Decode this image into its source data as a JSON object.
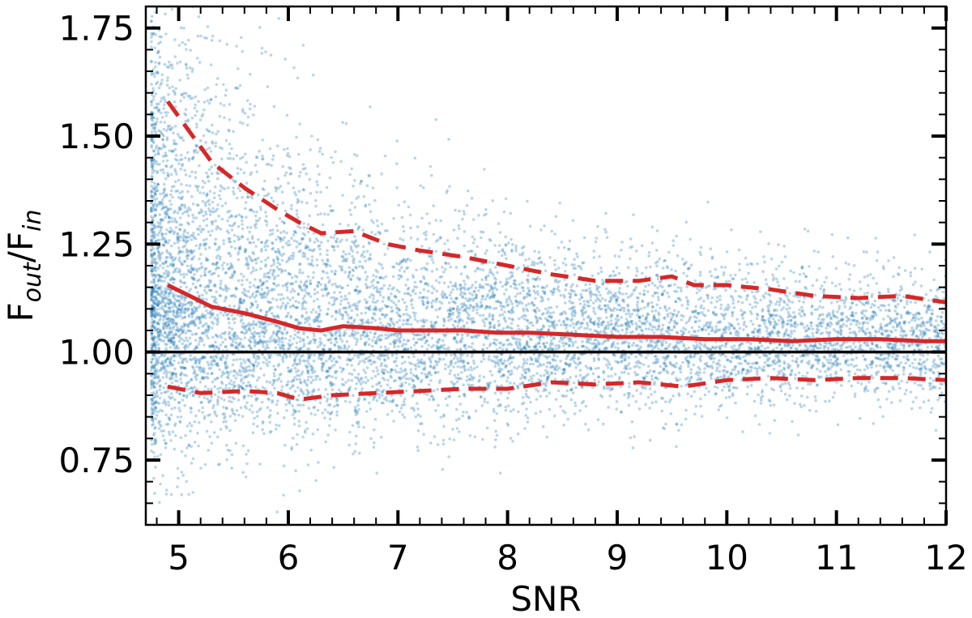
{
  "chart_data": {
    "type": "scatter",
    "xlabel": "SNR",
    "ylabel_main": "F",
    "ylabel_sub1": "out",
    "ylabel_mid": "/F",
    "ylabel_sub2": "in",
    "xlim": [
      4.7,
      12
    ],
    "ylim": [
      0.6,
      1.8
    ],
    "xticks": [
      5,
      6,
      7,
      8,
      9,
      10,
      11,
      12
    ],
    "xtick_labels": [
      "5",
      "6",
      "7",
      "8",
      "9",
      "10",
      "11",
      "12"
    ],
    "yticks": [
      0.75,
      1.0,
      1.25,
      1.5,
      1.75
    ],
    "ytick_labels": [
      "0.75",
      "1.00",
      "1.25",
      "1.50",
      "1.75"
    ],
    "grid": false,
    "scatter_color": "#1f77b4",
    "reference_line": {
      "y": 1.0,
      "color": "#000000"
    },
    "series": [
      {
        "style": "solid",
        "color": "#d62728",
        "x": [
          4.9,
          5.1,
          5.3,
          5.6,
          5.9,
          6.1,
          6.3,
          6.5,
          6.8,
          7.0,
          7.3,
          7.6,
          7.9,
          8.2,
          8.6,
          9.0,
          9.4,
          9.8,
          10.2,
          10.6,
          11.0,
          11.4,
          11.8,
          12.0
        ],
        "y": [
          1.155,
          1.13,
          1.105,
          1.09,
          1.07,
          1.055,
          1.05,
          1.06,
          1.055,
          1.05,
          1.05,
          1.05,
          1.045,
          1.045,
          1.04,
          1.035,
          1.035,
          1.03,
          1.03,
          1.025,
          1.03,
          1.03,
          1.025,
          1.025
        ]
      },
      {
        "style": "dashed",
        "color": "#d62728",
        "x": [
          4.9,
          5.1,
          5.3,
          5.6,
          5.9,
          6.1,
          6.3,
          6.6,
          6.9,
          7.2,
          7.6,
          8.0,
          8.4,
          8.8,
          9.2,
          9.5,
          9.7,
          10.0,
          10.4,
          10.8,
          11.2,
          11.6,
          12.0
        ],
        "y": [
          1.58,
          1.51,
          1.44,
          1.38,
          1.33,
          1.3,
          1.275,
          1.28,
          1.25,
          1.235,
          1.22,
          1.2,
          1.18,
          1.165,
          1.165,
          1.175,
          1.155,
          1.155,
          1.145,
          1.13,
          1.125,
          1.13,
          1.115
        ]
      },
      {
        "style": "dashed",
        "color": "#d62728",
        "x": [
          4.9,
          5.2,
          5.6,
          5.9,
          6.1,
          6.4,
          6.8,
          7.2,
          7.6,
          8.0,
          8.4,
          8.8,
          9.2,
          9.6,
          10.0,
          10.4,
          10.8,
          11.2,
          11.6,
          12.0
        ],
        "y": [
          0.92,
          0.905,
          0.91,
          0.905,
          0.89,
          0.9,
          0.905,
          0.91,
          0.915,
          0.915,
          0.93,
          0.925,
          0.93,
          0.92,
          0.935,
          0.94,
          0.935,
          0.94,
          0.94,
          0.935
        ]
      }
    ]
  }
}
